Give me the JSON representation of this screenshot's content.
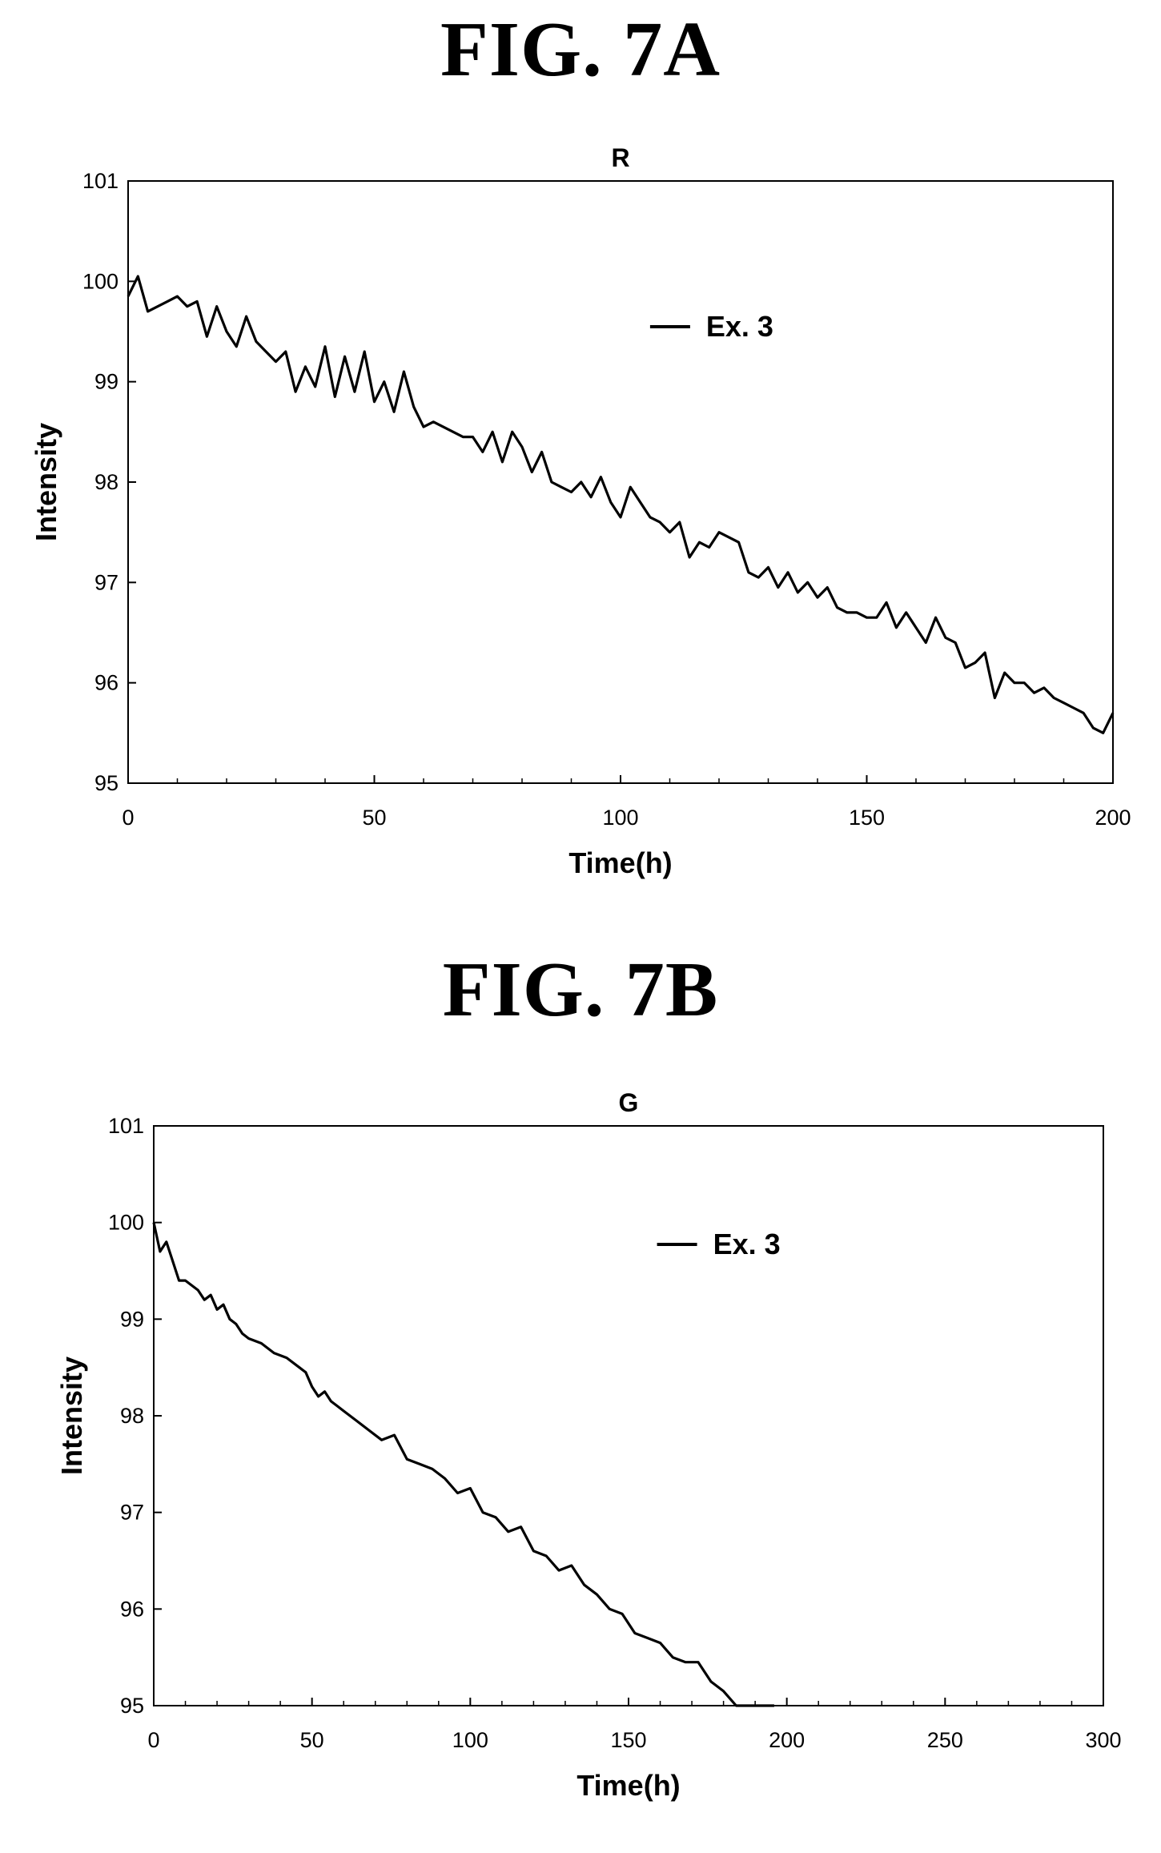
{
  "figures": [
    {
      "label": "FIG. 7A"
    },
    {
      "label": "FIG. 7B"
    }
  ],
  "colors": {
    "line": "#000000",
    "background": "#ffffff"
  },
  "chart_data": [
    {
      "type": "line",
      "title": "R",
      "xlabel": "Time(h)",
      "ylabel": "Intensity",
      "xlim": [
        0,
        200
      ],
      "ylim": [
        95,
        101
      ],
      "xticks": [
        0,
        50,
        100,
        150,
        200
      ],
      "yticks": [
        95,
        96,
        97,
        98,
        99,
        100,
        101
      ],
      "grid": false,
      "legend_position": "top-center",
      "series": [
        {
          "name": "Ex. 3",
          "x": [
            0,
            2,
            4,
            6,
            8,
            10,
            12,
            14,
            16,
            18,
            20,
            22,
            24,
            26,
            28,
            30,
            32,
            34,
            36,
            38,
            40,
            42,
            44,
            46,
            48,
            50,
            52,
            54,
            56,
            58,
            60,
            62,
            64,
            66,
            68,
            70,
            72,
            74,
            76,
            78,
            80,
            82,
            84,
            86,
            88,
            90,
            92,
            94,
            96,
            98,
            100,
            102,
            104,
            106,
            108,
            110,
            112,
            114,
            116,
            118,
            120,
            122,
            124,
            126,
            128,
            130,
            132,
            134,
            136,
            138,
            140,
            142,
            144,
            146,
            148,
            150,
            152,
            154,
            156,
            158,
            160,
            162,
            164,
            166,
            168,
            170,
            172,
            174,
            176,
            178,
            180,
            182,
            184,
            186,
            188,
            190,
            192,
            194,
            196,
            198,
            200
          ],
          "y": [
            99.85,
            100.05,
            99.7,
            99.75,
            99.8,
            99.85,
            99.75,
            99.8,
            99.45,
            99.75,
            99.5,
            99.35,
            99.65,
            99.4,
            99.3,
            99.2,
            99.3,
            98.9,
            99.15,
            98.95,
            99.35,
            98.85,
            99.25,
            98.9,
            99.3,
            98.8,
            99.0,
            98.7,
            99.1,
            98.75,
            98.55,
            98.6,
            98.55,
            98.5,
            98.45,
            98.45,
            98.3,
            98.5,
            98.2,
            98.5,
            98.35,
            98.1,
            98.3,
            98.0,
            97.95,
            97.9,
            98.0,
            97.85,
            98.05,
            97.8,
            97.65,
            97.95,
            97.8,
            97.65,
            97.6,
            97.5,
            97.6,
            97.25,
            97.4,
            97.35,
            97.5,
            97.45,
            97.4,
            97.1,
            97.05,
            97.15,
            96.95,
            97.1,
            96.9,
            97.0,
            96.85,
            96.95,
            96.75,
            96.7,
            96.7,
            96.65,
            96.65,
            96.8,
            96.55,
            96.7,
            96.55,
            96.4,
            96.65,
            96.45,
            96.4,
            96.15,
            96.2,
            96.3,
            95.85,
            96.1,
            96.0,
            96.0,
            95.9,
            95.95,
            95.85,
            95.8,
            95.75,
            95.7,
            95.55,
            95.5,
            95.7
          ]
        }
      ]
    },
    {
      "type": "line",
      "title": "G",
      "xlabel": "Time(h)",
      "ylabel": "Intensity",
      "xlim": [
        0,
        300
      ],
      "ylim": [
        95,
        101
      ],
      "xticks": [
        0,
        50,
        100,
        150,
        200,
        250,
        300
      ],
      "yticks": [
        95,
        96,
        97,
        98,
        99,
        100,
        101
      ],
      "grid": false,
      "legend_position": "top-center",
      "series": [
        {
          "name": "Ex. 3",
          "x": [
            0,
            2,
            4,
            6,
            8,
            10,
            12,
            14,
            16,
            18,
            20,
            22,
            24,
            26,
            28,
            30,
            34,
            38,
            42,
            46,
            48,
            50,
            52,
            54,
            56,
            58,
            60,
            64,
            68,
            72,
            76,
            80,
            84,
            88,
            92,
            96,
            100,
            104,
            108,
            112,
            116,
            120,
            124,
            128,
            132,
            136,
            140,
            144,
            148,
            152,
            156,
            160,
            164,
            168,
            172,
            176,
            180,
            184,
            188,
            192,
            196
          ],
          "y": [
            100.0,
            99.7,
            99.8,
            99.6,
            99.4,
            99.4,
            99.35,
            99.3,
            99.2,
            99.25,
            99.1,
            99.15,
            99.0,
            98.95,
            98.85,
            98.8,
            98.75,
            98.65,
            98.6,
            98.5,
            98.45,
            98.3,
            98.2,
            98.25,
            98.15,
            98.1,
            98.05,
            97.95,
            97.85,
            97.75,
            97.8,
            97.55,
            97.5,
            97.45,
            97.35,
            97.2,
            97.25,
            97.0,
            96.95,
            96.8,
            96.85,
            96.6,
            96.55,
            96.4,
            96.45,
            96.25,
            96.15,
            96.0,
            95.95,
            95.75,
            95.7,
            95.65,
            95.5,
            95.45,
            95.45,
            95.25,
            95.15,
            95.0,
            95.0,
            95.0,
            95.0
          ]
        }
      ]
    }
  ]
}
